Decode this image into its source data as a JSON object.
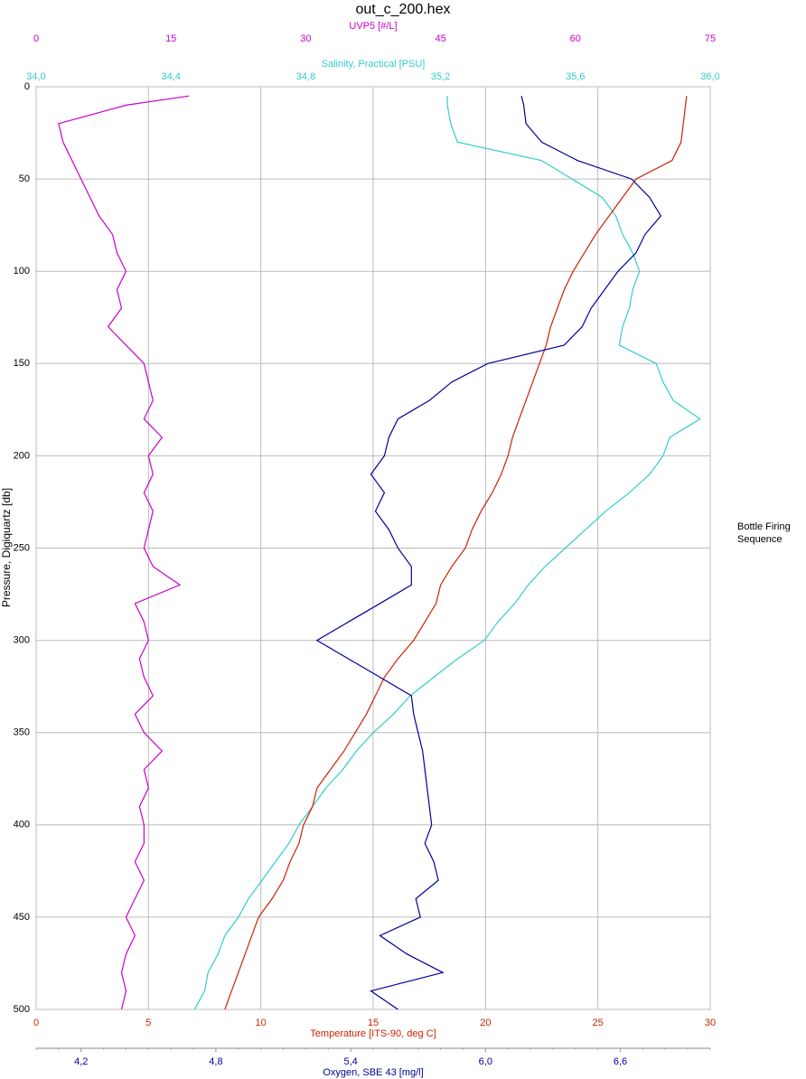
{
  "chart_data": {
    "type": "line",
    "title": "out_c_200.hex",
    "y_label": "Pressure, Digiquartz [db]",
    "ylim": [
      0,
      500
    ],
    "yticks": [
      0,
      50,
      100,
      150,
      200,
      250,
      300,
      350,
      400,
      450,
      500
    ],
    "legend_title": "Bottle Firing Sequence",
    "pressure": [
      5,
      10,
      20,
      30,
      40,
      50,
      60,
      70,
      80,
      90,
      100,
      110,
      120,
      130,
      140,
      150,
      160,
      170,
      180,
      190,
      200,
      210,
      220,
      230,
      240,
      250,
      260,
      270,
      280,
      290,
      300,
      310,
      320,
      330,
      340,
      350,
      360,
      370,
      380,
      390,
      400,
      410,
      420,
      430,
      440,
      450,
      460,
      470,
      480,
      490,
      500
    ],
    "x_axes": [
      {
        "label": "UVP5 [#/L]",
        "color": "#cc00cc",
        "position": "top",
        "xlim": [
          0,
          75
        ],
        "xticks": [
          0,
          15,
          30,
          45,
          60,
          75
        ]
      },
      {
        "label": "Salinity, Practical [PSU]",
        "color": "#33cccc",
        "position": "top",
        "xlim": [
          34.0,
          36.0
        ],
        "xticks": [
          {
            "value": 34.0,
            "label": "34,0"
          },
          {
            "value": 34.4,
            "label": "34,4"
          },
          {
            "value": 34.8,
            "label": "34,8"
          },
          {
            "value": 35.2,
            "label": "35,2"
          },
          {
            "value": 35.6,
            "label": "35,6"
          },
          {
            "value": 36.0,
            "label": "36,0"
          }
        ]
      },
      {
        "label": "Temperature [ITS-90, deg C]",
        "color": "#cc2200",
        "position": "bottom",
        "grid": true,
        "xlim": [
          0,
          30
        ],
        "xticks": [
          0,
          5,
          10,
          15,
          20,
          25,
          30
        ]
      },
      {
        "label": "Oxygen, SBE 43 [mg/l]",
        "color": "#000099",
        "position": "bottom",
        "xlim": [
          4.0,
          7.0
        ],
        "xticks": [
          {
            "value": 4.2,
            "label": "4,2"
          },
          {
            "value": 4.8,
            "label": "4,8"
          },
          {
            "value": 5.4,
            "label": "5,4"
          },
          {
            "value": 6.0,
            "label": "6,0"
          },
          {
            "value": 6.6,
            "label": "6,6"
          }
        ]
      }
    ],
    "series": [
      {
        "axis": 0,
        "color": "#cc00cc",
        "values": [
          17,
          10,
          2.5,
          3,
          4,
          5,
          6,
          7,
          8.5,
          9,
          10,
          9,
          9.5,
          8,
          10,
          12,
          12.5,
          13,
          12,
          14,
          12.5,
          13,
          12,
          13,
          12.5,
          12,
          13,
          16,
          11,
          12,
          12.5,
          11.5,
          12,
          13,
          11,
          12,
          14,
          12,
          12.5,
          11.5,
          12,
          12,
          11,
          12,
          11,
          10,
          11,
          10,
          9.5,
          10,
          9.5
        ]
      },
      {
        "axis": 1,
        "color": "#33cccc",
        "values": [
          35.22,
          35.22,
          35.23,
          35.25,
          35.5,
          35.59,
          35.68,
          35.72,
          35.74,
          35.77,
          35.79,
          35.77,
          35.76,
          35.74,
          35.73,
          35.84,
          35.86,
          35.89,
          35.97,
          35.88,
          35.86,
          35.82,
          35.76,
          35.69,
          35.63,
          35.57,
          35.51,
          35.46,
          35.42,
          35.37,
          35.33,
          35.25,
          35.18,
          35.11,
          35.06,
          35.0,
          34.95,
          34.91,
          34.86,
          34.82,
          34.78,
          34.75,
          34.71,
          34.67,
          34.63,
          34.6,
          34.56,
          34.54,
          34.51,
          34.5,
          34.47
        ]
      },
      {
        "axis": 2,
        "color": "#cc2200",
        "values": [
          28.95,
          28.9,
          28.8,
          28.7,
          28.3,
          26.7,
          26.1,
          25.5,
          24.9,
          24.4,
          23.9,
          23.5,
          23.2,
          22.9,
          22.7,
          22.4,
          22.1,
          21.8,
          21.5,
          21.2,
          21.0,
          20.7,
          20.3,
          19.8,
          19.4,
          19.1,
          18.5,
          18.0,
          17.8,
          17.3,
          16.8,
          16.1,
          15.5,
          15.1,
          14.7,
          14.2,
          13.7,
          13.1,
          12.5,
          12.3,
          11.9,
          11.7,
          11.3,
          11.0,
          10.5,
          9.9,
          9.6,
          9.3,
          9.0,
          8.7,
          8.4
        ]
      },
      {
        "axis": 3,
        "color": "#000099",
        "values": [
          6.16,
          6.17,
          6.18,
          6.25,
          6.41,
          6.65,
          6.73,
          6.78,
          6.71,
          6.67,
          6.59,
          6.53,
          6.47,
          6.43,
          6.35,
          6.01,
          5.85,
          5.75,
          5.61,
          5.57,
          5.55,
          5.49,
          5.55,
          5.51,
          5.57,
          5.61,
          5.67,
          5.67,
          5.53,
          5.39,
          5.25,
          5.39,
          5.53,
          5.67,
          5.68,
          5.7,
          5.72,
          5.73,
          5.74,
          5.75,
          5.76,
          5.73,
          5.77,
          5.79,
          5.69,
          5.71,
          5.53,
          5.65,
          5.81,
          5.49,
          5.61
        ]
      }
    ]
  }
}
